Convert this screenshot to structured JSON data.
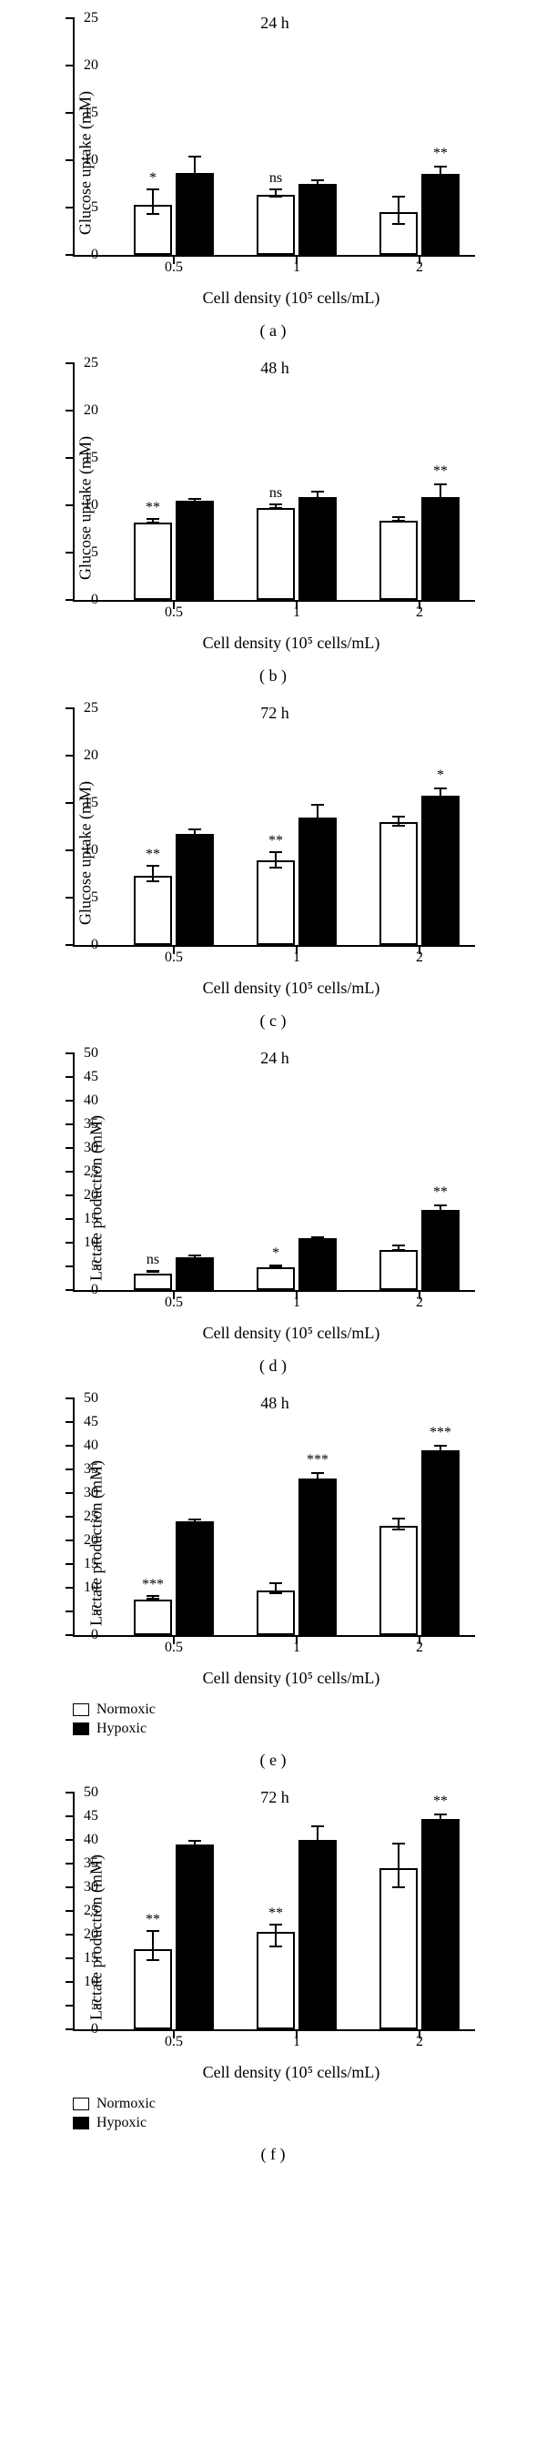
{
  "xaxis_title": "Cell density (10⁵ cells/mL)",
  "categories": [
    "0.5",
    "1",
    "2"
  ],
  "legend": {
    "normoxic": "Normoxic",
    "hypoxic": "Hypoxic",
    "colors": {
      "n": "#ffffff",
      "h": "#000000"
    }
  },
  "panels": [
    {
      "id": "a",
      "title": "24 h",
      "ylabel": "Glucose uptake (mM)",
      "ymax": 25,
      "ystep": 5,
      "sublabel": "( a )",
      "show_legend": false,
      "groups": [
        {
          "n": {
            "v": 5.3,
            "eu": 1.5,
            "ed": 1.3
          },
          "h": {
            "v": 8.7,
            "eu": 1.8,
            "ed": 0.8
          },
          "sig": "*",
          "sig_at": "n_top"
        },
        {
          "n": {
            "v": 6.3,
            "eu": 0.5,
            "ed": 0.4
          },
          "h": {
            "v": 7.5,
            "eu": 0.5,
            "ed": 0.4
          },
          "sig": "ns",
          "sig_at": "n_top"
        },
        {
          "n": {
            "v": 4.5,
            "eu": 1.6,
            "ed": 1.5
          },
          "h": {
            "v": 8.6,
            "eu": 0.8,
            "ed": 0.7
          },
          "sig": "**",
          "sig_at": "h_top"
        }
      ]
    },
    {
      "id": "b",
      "title": "48 h",
      "ylabel": "Glucose uptake (mM)",
      "ymax": 25,
      "ystep": 5,
      "sublabel": "( b )",
      "show_legend": false,
      "groups": [
        {
          "n": {
            "v": 8.2,
            "eu": 0.3,
            "ed": 0.3
          },
          "h": {
            "v": 10.5,
            "eu": 0.3,
            "ed": 0.3
          },
          "sig": "**",
          "sig_at": "n_top"
        },
        {
          "n": {
            "v": 9.7,
            "eu": 0.3,
            "ed": 0.3
          },
          "h": {
            "v": 10.9,
            "eu": 0.6,
            "ed": 0.5
          },
          "sig": "ns",
          "sig_at": "n_top"
        },
        {
          "n": {
            "v": 8.4,
            "eu": 0.3,
            "ed": 0.3
          },
          "h": {
            "v": 10.9,
            "eu": 1.4,
            "ed": 1.3
          },
          "sig": "**",
          "sig_at": "h_top"
        }
      ]
    },
    {
      "id": "c",
      "title": "72 h",
      "ylabel": "Glucose uptake (mM)",
      "ymax": 25,
      "ystep": 5,
      "sublabel": "( c )",
      "show_legend": false,
      "groups": [
        {
          "n": {
            "v": 7.3,
            "eu": 1.0,
            "ed": 0.9
          },
          "h": {
            "v": 11.7,
            "eu": 0.6,
            "ed": 0.5
          },
          "sig": "**",
          "sig_at": "n_top"
        },
        {
          "n": {
            "v": 8.9,
            "eu": 0.8,
            "ed": 1.0
          },
          "h": {
            "v": 13.5,
            "eu": 1.4,
            "ed": 1.2
          },
          "sig": "**",
          "sig_at": "n_top"
        },
        {
          "n": {
            "v": 13.0,
            "eu": 0.5,
            "ed": 0.7
          },
          "h": {
            "v": 15.8,
            "eu": 0.8,
            "ed": 0.7
          },
          "sig": "*",
          "sig_at": "h_top"
        }
      ]
    },
    {
      "id": "d",
      "title": "24 h",
      "ylabel": "Lactate production (mM)",
      "ymax": 50,
      "ystep": 5,
      "sublabel": "( d )",
      "show_legend": false,
      "groups": [
        {
          "n": {
            "v": 3.5,
            "eu": 0.3,
            "ed": 0.3
          },
          "h": {
            "v": 7.0,
            "eu": 0.5,
            "ed": 0.4
          },
          "sig": "ns",
          "sig_at": "n_top"
        },
        {
          "n": {
            "v": 4.8,
            "eu": 0.3,
            "ed": 0.3
          },
          "h": {
            "v": 11.0,
            "eu": 0.4,
            "ed": 0.3
          },
          "sig": "*",
          "sig_at": "n_top"
        },
        {
          "n": {
            "v": 8.5,
            "eu": 0.8,
            "ed": 0.7
          },
          "h": {
            "v": 17.0,
            "eu": 1.0,
            "ed": 0.9
          },
          "sig": "**",
          "sig_at": "h_top"
        }
      ]
    },
    {
      "id": "e",
      "title": "48 h",
      "ylabel": "Lactate production (mM)",
      "ymax": 50,
      "ystep": 5,
      "sublabel": "( e )",
      "show_legend": true,
      "groups": [
        {
          "n": {
            "v": 7.5,
            "eu": 0.5,
            "ed": 0.4
          },
          "h": {
            "v": 24.0,
            "eu": 0.6,
            "ed": 0.5
          },
          "sig": "***",
          "sig_at": "n_top"
        },
        {
          "n": {
            "v": 9.5,
            "eu": 1.3,
            "ed": 1.2
          },
          "h": {
            "v": 33.0,
            "eu": 1.5,
            "ed": 1.3
          },
          "sig": "***",
          "sig_at": "h_top"
        },
        {
          "n": {
            "v": 23.0,
            "eu": 1.5,
            "ed": 1.3
          },
          "h": {
            "v": 39.0,
            "eu": 1.2,
            "ed": 1.0
          },
          "sig": "***",
          "sig_at": "h_top"
        }
      ]
    },
    {
      "id": "f",
      "title": "72 h",
      "ylabel": "Lactate production (mM)",
      "ymax": 50,
      "ystep": 5,
      "sublabel": "( f )",
      "show_legend": true,
      "groups": [
        {
          "n": {
            "v": 17.0,
            "eu": 3.5,
            "ed": 3.0
          },
          "h": {
            "v": 39.0,
            "eu": 1.0,
            "ed": 0.8
          },
          "sig": "**",
          "sig_at": "n_top"
        },
        {
          "n": {
            "v": 20.5,
            "eu": 1.5,
            "ed": 3.5
          },
          "h": {
            "v": 40.0,
            "eu": 3.0,
            "ed": 2.5
          },
          "sig": "**",
          "sig_at": "n_top"
        },
        {
          "n": {
            "v": 34.0,
            "eu": 5.0,
            "ed": 4.5
          },
          "h": {
            "v": 44.5,
            "eu": 1.0,
            "ed": 0.8
          },
          "sig": "**",
          "sig_at": "h_top"
        }
      ]
    }
  ]
}
